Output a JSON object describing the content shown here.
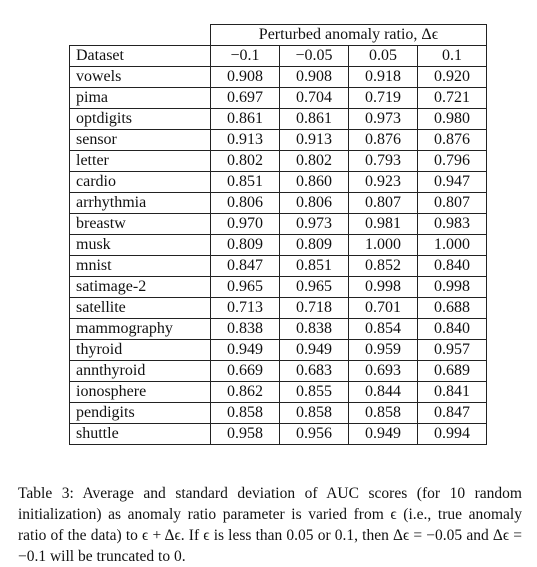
{
  "table": {
    "group_header": "Perturbed anomaly ratio, Δϵ",
    "dataset_header": "Dataset",
    "columns": [
      "−0.1",
      "−0.05",
      "0.05",
      "0.1"
    ],
    "rows": [
      {
        "dataset": "vowels",
        "values": [
          "0.908",
          "0.908",
          "0.918",
          "0.920"
        ]
      },
      {
        "dataset": "pima",
        "values": [
          "0.697",
          "0.704",
          "0.719",
          "0.721"
        ]
      },
      {
        "dataset": "optdigits",
        "values": [
          "0.861",
          "0.861",
          "0.973",
          "0.980"
        ]
      },
      {
        "dataset": "sensor",
        "values": [
          "0.913",
          "0.913",
          "0.876",
          "0.876"
        ]
      },
      {
        "dataset": "letter",
        "values": [
          "0.802",
          "0.802",
          "0.793",
          "0.796"
        ]
      },
      {
        "dataset": "cardio",
        "values": [
          "0.851",
          "0.860",
          "0.923",
          "0.947"
        ]
      },
      {
        "dataset": "arrhythmia",
        "values": [
          "0.806",
          "0.806",
          "0.807",
          "0.807"
        ]
      },
      {
        "dataset": "breastw",
        "values": [
          "0.970",
          "0.973",
          "0.981",
          "0.983"
        ]
      },
      {
        "dataset": "musk",
        "values": [
          "0.809",
          "0.809",
          "1.000",
          "1.000"
        ]
      },
      {
        "dataset": "mnist",
        "values": [
          "0.847",
          "0.851",
          "0.852",
          "0.840"
        ]
      },
      {
        "dataset": "satimage-2",
        "values": [
          "0.965",
          "0.965",
          "0.998",
          "0.998"
        ]
      },
      {
        "dataset": "satellite",
        "values": [
          "0.713",
          "0.718",
          "0.701",
          "0.688"
        ]
      },
      {
        "dataset": "mammography",
        "values": [
          "0.838",
          "0.838",
          "0.854",
          "0.840"
        ]
      },
      {
        "dataset": "thyroid",
        "values": [
          "0.949",
          "0.949",
          "0.959",
          "0.957"
        ]
      },
      {
        "dataset": "annthyroid",
        "values": [
          "0.669",
          "0.683",
          "0.693",
          "0.689"
        ]
      },
      {
        "dataset": "ionosphere",
        "values": [
          "0.862",
          "0.855",
          "0.844",
          "0.841"
        ]
      },
      {
        "dataset": "pendigits",
        "values": [
          "0.858",
          "0.858",
          "0.858",
          "0.847"
        ]
      },
      {
        "dataset": "shuttle",
        "values": [
          "0.958",
          "0.956",
          "0.949",
          "0.994"
        ]
      }
    ]
  },
  "caption": "Table 3: Average and standard deviation of AUC scores (for 10 random initialization) as anomaly ratio parameter is varied from ϵ (i.e., true anomaly ratio of the data) to ϵ + Δϵ. If ϵ is less than 0.05 or 0.1, then Δϵ = −0.05 and Δϵ = −0.1 will be truncated to 0."
}
